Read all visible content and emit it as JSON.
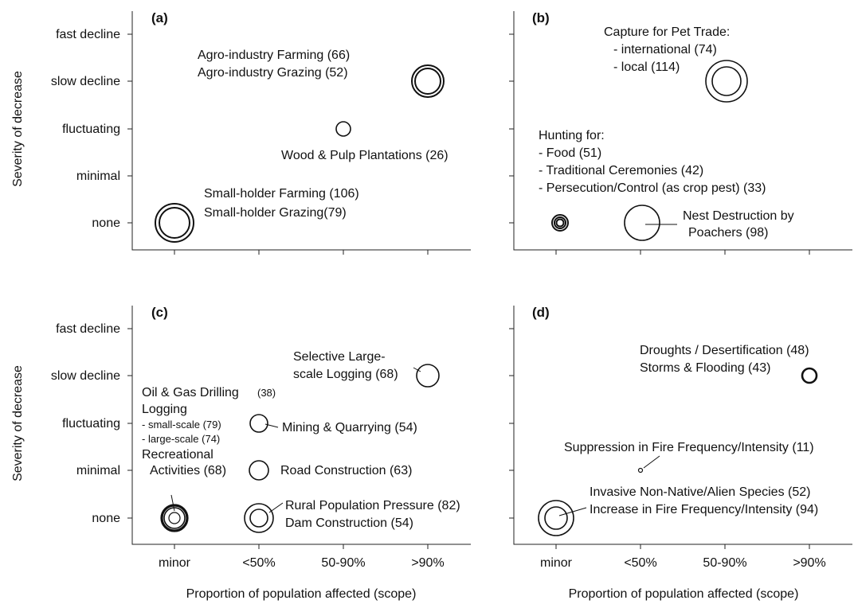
{
  "figure": {
    "ylabel": "Severity of decrease",
    "xlabel": "Proportion of population affected (scope)",
    "x_categories": [
      "minor",
      "<50%",
      "50-90%",
      ">90%"
    ],
    "y_categories": [
      "none",
      "minimal",
      "fluctuating",
      "slow decline",
      "fast decline"
    ]
  },
  "chart_data": [
    {
      "type": "scatter",
      "panel": "(a)",
      "x_categories": [
        "minor",
        "<50%",
        "50-90%",
        ">90%"
      ],
      "y_categories": [
        "none",
        "minimal",
        "fluctuating",
        "slow decline",
        "fast decline"
      ],
      "points": [
        {
          "x": "minor",
          "y": "none",
          "threats": [
            {
              "name": "Small-holder Farming",
              "value": 106
            },
            {
              "name": "Small-holder Grazing",
              "value": 79
            }
          ]
        },
        {
          "x": "50-90%",
          "y": "fluctuating",
          "threats": [
            {
              "name": "Wood & Pulp Plantations",
              "value": 26
            }
          ]
        },
        {
          "x": ">90%",
          "y": "slow decline",
          "threats": [
            {
              "name": "Agro-industry Farming",
              "value": 66
            },
            {
              "name": "Agro-industry Grazing",
              "value": 52
            }
          ]
        }
      ],
      "annotations": [
        "Agro-industry Farming (66)",
        "Agro-industry Grazing (52)",
        "Wood & Pulp Plantations (26)",
        "Small-holder Farming (106)",
        "Small-holder Grazing(79)"
      ]
    },
    {
      "type": "scatter",
      "panel": "(b)",
      "x_categories": [
        "minor",
        "<50%",
        "50-90%",
        ">90%"
      ],
      "y_categories": [
        "none",
        "minimal",
        "fluctuating",
        "slow decline",
        "fast decline"
      ],
      "points": [
        {
          "x": "50-90%",
          "y": "slow decline",
          "threats": [
            {
              "name": "Capture for Pet Trade: international",
              "value": 74
            },
            {
              "name": "Capture for Pet Trade: local",
              "value": 114
            }
          ]
        },
        {
          "x": "minor",
          "y": "none",
          "threats": [
            {
              "name": "Hunting for: Food",
              "value": 51
            },
            {
              "name": "Hunting for: Traditional Ceremonies",
              "value": 42
            },
            {
              "name": "Hunting for: Persecution/Control (as crop pest)",
              "value": 33
            }
          ]
        },
        {
          "x": "<50%",
          "y": "none",
          "threats": [
            {
              "name": "Nest Destruction by Poachers",
              "value": 98
            }
          ]
        }
      ],
      "annotations": [
        "Capture for Pet Trade:",
        "- international (74)",
        "- local (114)",
        "Hunting for:",
        "- Food (51)",
        "- Traditional Ceremonies (42)",
        "- Persecution/Control (as crop pest) (33)",
        "Nest Destruction by",
        "Poachers (98)"
      ]
    },
    {
      "type": "scatter",
      "panel": "(c)",
      "x_categories": [
        "minor",
        "<50%",
        "50-90%",
        ">90%"
      ],
      "y_categories": [
        "none",
        "minimal",
        "fluctuating",
        "slow decline",
        "fast decline"
      ],
      "points": [
        {
          "x": ">90%",
          "y": "slow decline",
          "threats": [
            {
              "name": "Selective Large-scale Logging",
              "value": 68
            }
          ]
        },
        {
          "x": "<50%",
          "y": "fluctuating",
          "threats": [
            {
              "name": "Mining & Quarrying",
              "value": 54
            }
          ]
        },
        {
          "x": "<50%",
          "y": "minimal",
          "threats": [
            {
              "name": "Road Construction",
              "value": 63
            }
          ]
        },
        {
          "x": "<50%",
          "y": "none",
          "threats": [
            {
              "name": "Rural Population Pressure",
              "value": 82
            },
            {
              "name": "Dam Construction",
              "value": 54
            }
          ]
        },
        {
          "x": "minor",
          "y": "none",
          "threats": [
            {
              "name": "Oil & Gas Drilling",
              "value": 38
            },
            {
              "name": "Logging - small-scale",
              "value": 79
            },
            {
              "name": "Logging - large-scale",
              "value": 74
            },
            {
              "name": "Recreational Activities",
              "value": 68
            }
          ]
        }
      ],
      "annotations": [
        "Selective Large-",
        "scale Logging (68)",
        "Oil & Gas Drilling",
        "(38)",
        "Logging",
        "- small-scale (79)",
        "- large-scale (74)",
        "Recreational",
        "Activities (68)",
        "Mining & Quarrying (54)",
        "Road Construction (63)",
        "Rural Population Pressure (82)",
        "Dam Construction (54)"
      ]
    },
    {
      "type": "scatter",
      "panel": "(d)",
      "x_categories": [
        "minor",
        "<50%",
        "50-90%",
        ">90%"
      ],
      "y_categories": [
        "none",
        "minimal",
        "fluctuating",
        "slow decline",
        "fast decline"
      ],
      "points": [
        {
          "x": ">90%",
          "y": "slow decline",
          "threats": [
            {
              "name": "Droughts / Desertification",
              "value": 48
            },
            {
              "name": "Storms & Flooding",
              "value": 43
            }
          ]
        },
        {
          "x": "<50%",
          "y": "minimal",
          "threats": [
            {
              "name": "Suppression in Fire Frequency/Intensity",
              "value": 11
            }
          ]
        },
        {
          "x": "minor",
          "y": "none",
          "threats": [
            {
              "name": "Invasive Non-Native/Alien Species",
              "value": 52
            },
            {
              "name": "Increase in Fire Frequency/Intensity",
              "value": 94
            }
          ]
        }
      ],
      "annotations": [
        "Droughts / Desertification (48)",
        "Storms & Flooding (43)",
        "Suppression in Fire Frequency/Intensity (11)",
        "Invasive Non-Native/Alien Species (52)",
        "Increase in Fire Frequency/Intensity (94)"
      ]
    }
  ]
}
